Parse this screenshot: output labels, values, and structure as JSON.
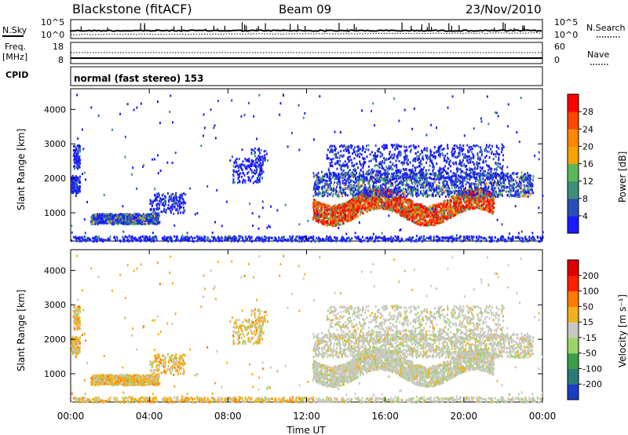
{
  "header": {
    "station": "Blackstone (fitACF)",
    "beam": "Beam 09",
    "date": "23/Nov/2010"
  },
  "left_labels": {
    "nsky": "N.Sky",
    "freq_line1": "Freq.",
    "freq_line2": "[MHz]",
    "cpid": "CPID"
  },
  "right_labels": {
    "nsearch": "N.Search",
    "nave": "Nave"
  },
  "mode_text": "normal (fast stereo) 153",
  "chart_data": [
    {
      "type": "line",
      "panel": "noise",
      "series": [
        {
          "name": "N.Sky",
          "style": "solid"
        },
        {
          "name": "N.Search",
          "style": "dotted"
        }
      ],
      "left_ticks": [
        "10^5",
        "10^0"
      ],
      "right_ticks": [
        "10^5",
        "10^0"
      ]
    },
    {
      "type": "line",
      "panel": "frequency",
      "series": [
        {
          "name": "Freq.",
          "style": "solid",
          "value": 8
        },
        {
          "name": "Nave",
          "style": "dotted"
        }
      ],
      "left_ticks": [
        "18",
        "8"
      ],
      "right_ticks": [
        "60",
        "0"
      ]
    },
    {
      "type": "heatmap",
      "panel": "power",
      "ylabel": "Slant Range [km]",
      "ylim": [
        180,
        4600
      ],
      "yticks": [
        1000,
        2000,
        3000,
        4000
      ],
      "xlim_hours": [
        0,
        24
      ],
      "colorbar": {
        "label": "Power [dB]",
        "ticks": [
          "4",
          "8",
          "12",
          "16",
          "20",
          "24",
          "28"
        ],
        "colors": [
          "#1a1aff",
          "#2b4fb8",
          "#3f8f7a",
          "#5ab85a",
          "#f5a300",
          "#ff8800",
          "#ff4400",
          "#ff0000"
        ]
      }
    },
    {
      "type": "heatmap",
      "panel": "velocity",
      "ylabel": "Slant Range [km]",
      "ylim": [
        180,
        4600
      ],
      "yticks": [
        1000,
        2000,
        3000,
        4000
      ],
      "xlim_hours": [
        0,
        24
      ],
      "colorbar": {
        "label": "Velocity [m s⁻¹]",
        "ticks": [
          "200",
          "100",
          "50",
          "15",
          "-15",
          "-50",
          "-100",
          "-200"
        ],
        "colors": [
          "#1a3dc4",
          "#2b7a7a",
          "#3d9e4a",
          "#9ad46a",
          "#c8c8c0",
          "#f0b020",
          "#ff7a00",
          "#ff2000",
          "#e00000"
        ]
      }
    }
  ],
  "x_axis": {
    "ticks": [
      "00:00",
      "04:00",
      "08:00",
      "12:00",
      "16:00",
      "20:00",
      "00:00"
    ],
    "label": "Time UT"
  }
}
